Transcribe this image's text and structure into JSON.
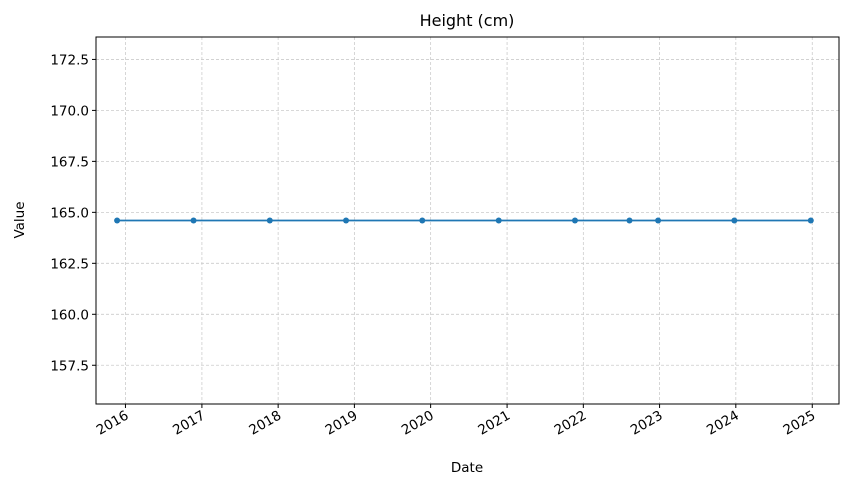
{
  "chart_data": {
    "type": "line",
    "title": "Height (cm)",
    "xlabel": "Date",
    "ylabel": "Value",
    "x_type": "date",
    "x_ticks": [
      "2016",
      "2017",
      "2018",
      "2019",
      "2020",
      "2021",
      "2022",
      "2023",
      "2024",
      "2025"
    ],
    "y_ticks": [
      "157.5",
      "160.0",
      "162.5",
      "165.0",
      "167.5",
      "170.0",
      "172.5"
    ],
    "ylim": [
      155.6,
      173.6
    ],
    "xlim": [
      "2015-08-13",
      "2025-05-09"
    ],
    "grid": true,
    "series": [
      {
        "color": "#1f77b4",
        "marker": "circle",
        "x": [
          "2015-11-22",
          "2016-11-22",
          "2017-11-22",
          "2018-11-22",
          "2019-11-22",
          "2020-11-22",
          "2021-11-22",
          "2022-08-10",
          "2022-12-25",
          "2023-12-25",
          "2024-12-25"
        ],
        "y": [
          164.6,
          164.6,
          164.6,
          164.6,
          164.6,
          164.6,
          164.6,
          164.6,
          164.6,
          164.6,
          164.6
        ]
      }
    ]
  }
}
